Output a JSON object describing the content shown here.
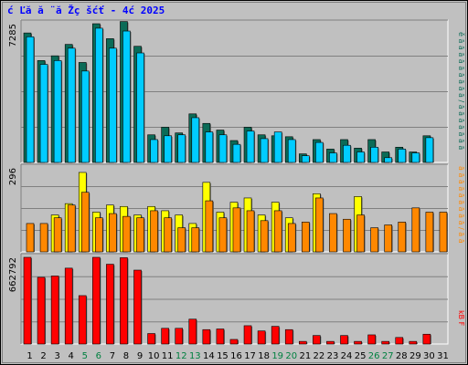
{
  "title": "ć Ľă ă ¨ă Žç šćť - 4ć 2025",
  "colors": {
    "page_bg": "#c0c0c0",
    "plot_bg": "#c0c0c0",
    "grid": "#808080",
    "teal": "#0b6b57",
    "cyan": "#00ccff",
    "yellow": "#ffff00",
    "orange": "#ff8800",
    "red": "#ff0000",
    "title": "#0000ff",
    "weekend": "#008040"
  },
  "chart_data": [
    {
      "type": "bar",
      "panel": "top",
      "ymax_label": "7285",
      "ylim": [
        0,
        7285
      ],
      "categories": [
        "1",
        "2",
        "3",
        "4",
        "5",
        "6",
        "7",
        "8",
        "9",
        "10",
        "11",
        "12",
        "13",
        "14",
        "15",
        "16",
        "17",
        "18",
        "19",
        "20",
        "21",
        "22",
        "23",
        "24",
        "25",
        "26",
        "27",
        "28",
        "29",
        "30",
        "31"
      ],
      "weekend_days": [
        "5",
        "6",
        "12",
        "13",
        "19",
        "20",
        "26",
        "27"
      ],
      "series": [
        {
          "color": "#0b6b57",
          "values": [
            6800,
            5350,
            5600,
            6200,
            5250,
            7285,
            6500,
            7400,
            6100,
            1450,
            1850,
            1550,
            2550,
            2050,
            1700,
            1150,
            1850,
            1450,
            1400,
            1350,
            450,
            1200,
            700,
            1200,
            750,
            1200,
            550,
            800,
            550,
            1400,
            0
          ]
        },
        {
          "color": "#00ccff",
          "values": [
            6600,
            5150,
            5350,
            6000,
            4800,
            7050,
            6000,
            6900,
            5750,
            1200,
            1400,
            1450,
            2350,
            1600,
            1450,
            950,
            1650,
            1250,
            1600,
            1200,
            350,
            1050,
            500,
            900,
            550,
            800,
            250,
            700,
            500,
            1300,
            0
          ]
        }
      ]
    },
    {
      "type": "bar",
      "panel": "middle",
      "ymax_label": "296",
      "ylim": [
        0,
        296
      ],
      "categories": [
        "1",
        "2",
        "3",
        "4",
        "5",
        "6",
        "7",
        "8",
        "9",
        "10",
        "11",
        "12",
        "13",
        "14",
        "15",
        "16",
        "17",
        "18",
        "19",
        "20",
        "21",
        "22",
        "23",
        "24",
        "25",
        "26",
        "27",
        "28",
        "29",
        "30",
        "31"
      ],
      "series": [
        {
          "color": "#ffff00",
          "values": [
            0,
            0,
            130,
            170,
            280,
            140,
            165,
            160,
            130,
            160,
            145,
            130,
            100,
            245,
            140,
            175,
            190,
            130,
            175,
            120,
            0,
            205,
            0,
            0,
            195,
            0,
            0,
            0,
            0,
            0,
            0
          ]
        },
        {
          "color": "#ff8800",
          "values": [
            100,
            100,
            120,
            165,
            210,
            120,
            135,
            125,
            120,
            145,
            120,
            85,
            85,
            180,
            120,
            155,
            145,
            110,
            145,
            100,
            105,
            190,
            135,
            115,
            130,
            85,
            95,
            105,
            155,
            140,
            140
          ]
        }
      ]
    },
    {
      "type": "bar",
      "panel": "bottom",
      "ymax_label": "662792",
      "ylim": [
        0,
        662792
      ],
      "categories": [
        "1",
        "2",
        "3",
        "4",
        "5",
        "6",
        "7",
        "8",
        "9",
        "10",
        "11",
        "12",
        "13",
        "14",
        "15",
        "16",
        "17",
        "18",
        "19",
        "20",
        "21",
        "22",
        "23",
        "24",
        "25",
        "26",
        "27",
        "28",
        "29",
        "30",
        "31"
      ],
      "series": [
        {
          "color": "#ff0000",
          "values": [
            662792,
            510000,
            520000,
            580000,
            370000,
            662792,
            610000,
            660000,
            565000,
            80000,
            120000,
            120000,
            190000,
            110000,
            115000,
            35000,
            140000,
            100000,
            135000,
            110000,
            20000,
            65000,
            20000,
            65000,
            20000,
            70000,
            20000,
            50000,
            20000,
            75000,
            0
          ]
        }
      ]
    }
  ],
  "right_legend": {
    "top": "ě ă ă ă ă ă ă ă ă ă / ă ă ă ă ă ă ă",
    "middle": "ă ă ă ă ă ă ă ă ă / ă ă",
    "bottom": "kB F"
  }
}
